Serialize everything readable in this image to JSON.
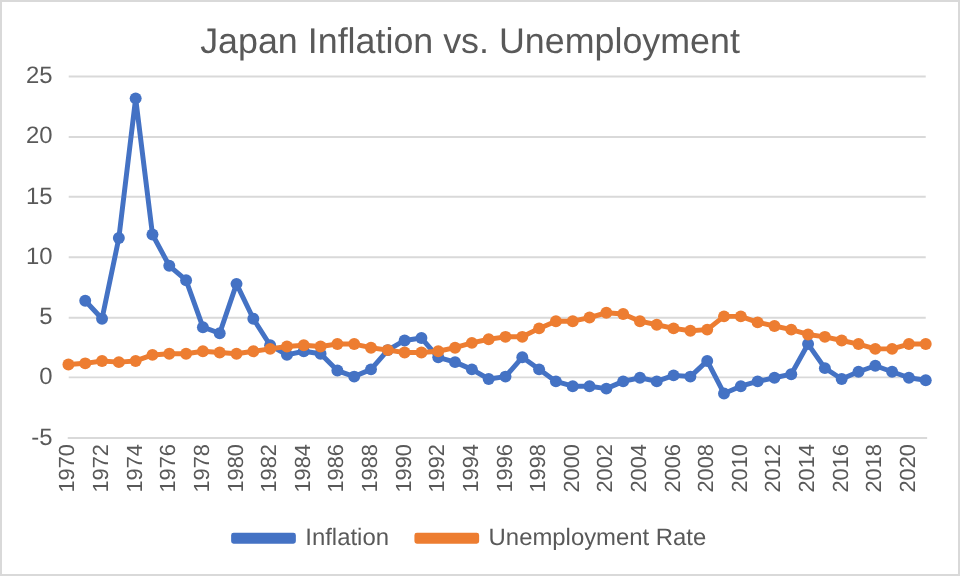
{
  "chart_data": {
    "type": "line",
    "title": "Japan Inflation vs. Unemployment",
    "categories": [
      "1970",
      null,
      "1972",
      null,
      "1974",
      null,
      "1976",
      null,
      "1978",
      null,
      "1980",
      null,
      "1982",
      null,
      "1984",
      null,
      "1986",
      null,
      "1988",
      null,
      "1990",
      null,
      "1992",
      null,
      "1994",
      null,
      "1996",
      null,
      "1998",
      null,
      "2000",
      null,
      "2002",
      null,
      "2004",
      null,
      "2006",
      null,
      "2008",
      null,
      "2010",
      null,
      "2012",
      null,
      "2014",
      null,
      "2016",
      null,
      "2018",
      null,
      "2020",
      null
    ],
    "series": [
      {
        "name": "Inflation",
        "color": "#4472c4",
        "values": [
          null,
          6.4,
          4.9,
          11.6,
          23.2,
          11.9,
          9.3,
          8.1,
          4.2,
          3.7,
          7.8,
          4.9,
          2.7,
          1.9,
          2.2,
          2.0,
          0.6,
          0.1,
          0.7,
          2.3,
          3.1,
          3.3,
          1.7,
          1.3,
          0.7,
          -0.1,
          0.1,
          1.7,
          0.7,
          -0.3,
          -0.7,
          -0.7,
          -0.9,
          -0.3,
          0.0,
          -0.3,
          0.2,
          0.1,
          1.4,
          -1.3,
          -0.7,
          -0.3,
          0.0,
          0.3,
          2.8,
          0.8,
          -0.1,
          0.5,
          1.0,
          0.5,
          0.0,
          -0.2
        ]
      },
      {
        "name": "Unemployment Rate",
        "color": "#ed7d31",
        "values": [
          1.1,
          1.2,
          1.4,
          1.3,
          1.4,
          1.9,
          2.0,
          2.0,
          2.2,
          2.1,
          2.0,
          2.2,
          2.4,
          2.6,
          2.7,
          2.6,
          2.8,
          2.8,
          2.5,
          2.3,
          2.1,
          2.1,
          2.2,
          2.5,
          2.9,
          3.2,
          3.4,
          3.4,
          4.1,
          4.7,
          4.7,
          5.0,
          5.4,
          5.3,
          4.7,
          4.4,
          4.1,
          3.9,
          4.0,
          5.1,
          5.1,
          4.6,
          4.3,
          4.0,
          3.6,
          3.4,
          3.1,
          2.8,
          2.4,
          2.4,
          2.8,
          2.8
        ]
      }
    ],
    "ylim": [
      -5,
      25
    ],
    "yticks": [
      -5,
      0,
      5,
      10,
      15,
      20,
      25
    ],
    "grid": "y",
    "legend": "bottom",
    "marker": "circle",
    "line_style": "solid"
  }
}
